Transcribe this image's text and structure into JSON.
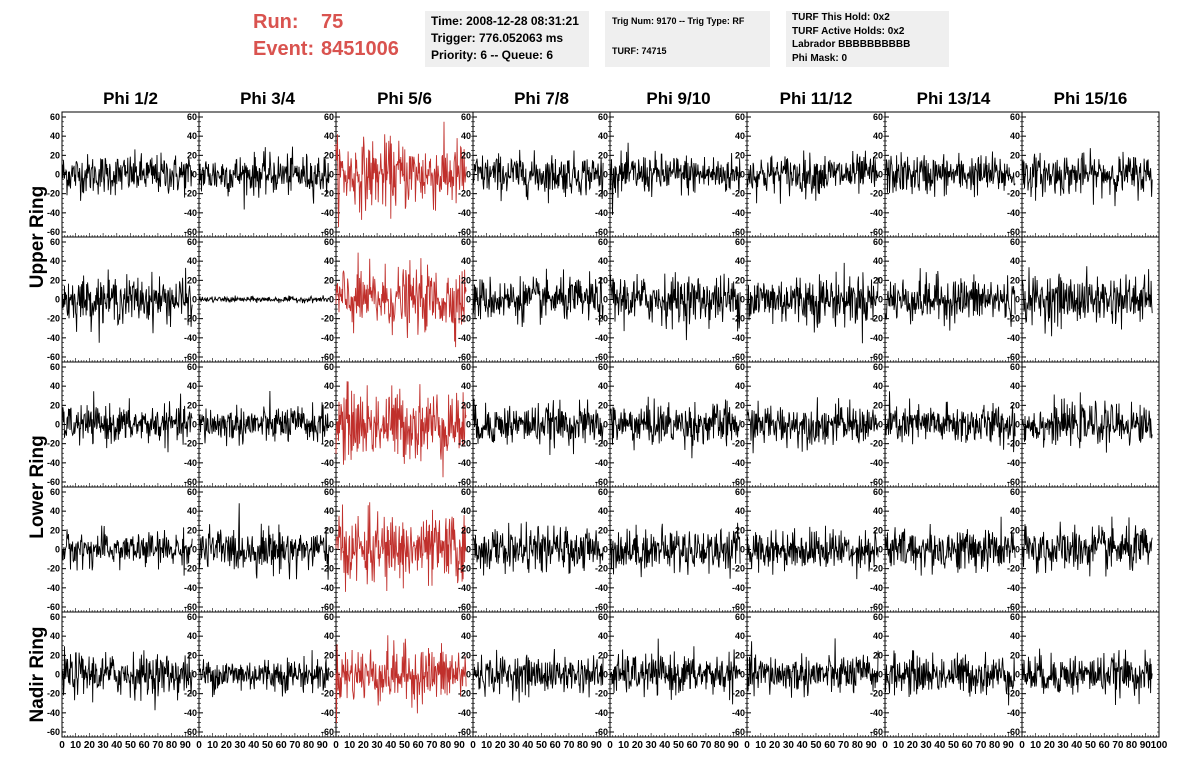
{
  "header": {
    "run_label": "Run:",
    "run_value": "75",
    "event_label": "Event:",
    "event_value": "8451006",
    "time": "Time: 2008-12-28 08:31:21",
    "trigger": "Trigger: 776.052063 ms",
    "priority_queue": "Priority: 6 -- Queue: 6",
    "trig_num_type": "Trig Num: 9170 -- Trig Type: RF",
    "turf": "TURF: 74715",
    "turf_this_hold": "TURF This Hold: 0x2",
    "turf_active_holds": "TURF Active Holds: 0x2",
    "labrador": "Labrador BBBBBBBBBB",
    "phi_mask": "Phi Mask: 0"
  },
  "colors": {
    "header_text": "#d9534f",
    "trace_normal": "#000000",
    "trace_highlight": "#c0302c",
    "info_box_bg": "#efefef"
  },
  "chart_data": {
    "type": "line",
    "description_grid": "5 rows x 8 columns of waveform panels",
    "columns": [
      "Phi 1/2",
      "Phi 3/4",
      "Phi 5/6",
      "Phi 7/8",
      "Phi 9/10",
      "Phi 11/12",
      "Phi 13/14",
      "Phi 15/16"
    ],
    "ring_labels": [
      "Upper Ring",
      "Lower Ring",
      "Nadir Ring"
    ],
    "rows": 5,
    "ylim": [
      -60,
      60
    ],
    "xlim": [
      0,
      100
    ],
    "y_ticks": [
      -60,
      -40,
      -20,
      0,
      20,
      40,
      60
    ],
    "x_ticks": [
      0,
      10,
      20,
      30,
      40,
      50,
      60,
      70,
      80,
      90,
      100
    ],
    "highlight_column": 2,
    "samples_per_trace": 260,
    "trace_x_range": [
      0,
      95
    ],
    "amplitudes": [
      [
        14,
        14,
        24,
        14,
        14,
        14,
        14,
        14
      ],
      [
        16,
        2,
        22,
        15,
        17,
        18,
        16,
        17
      ],
      [
        13,
        13,
        25,
        14,
        15,
        14,
        14,
        14
      ],
      [
        12,
        15,
        24,
        15,
        15,
        14,
        15,
        16
      ],
      [
        15,
        12,
        20,
        13,
        14,
        14,
        14,
        14
      ]
    ]
  }
}
